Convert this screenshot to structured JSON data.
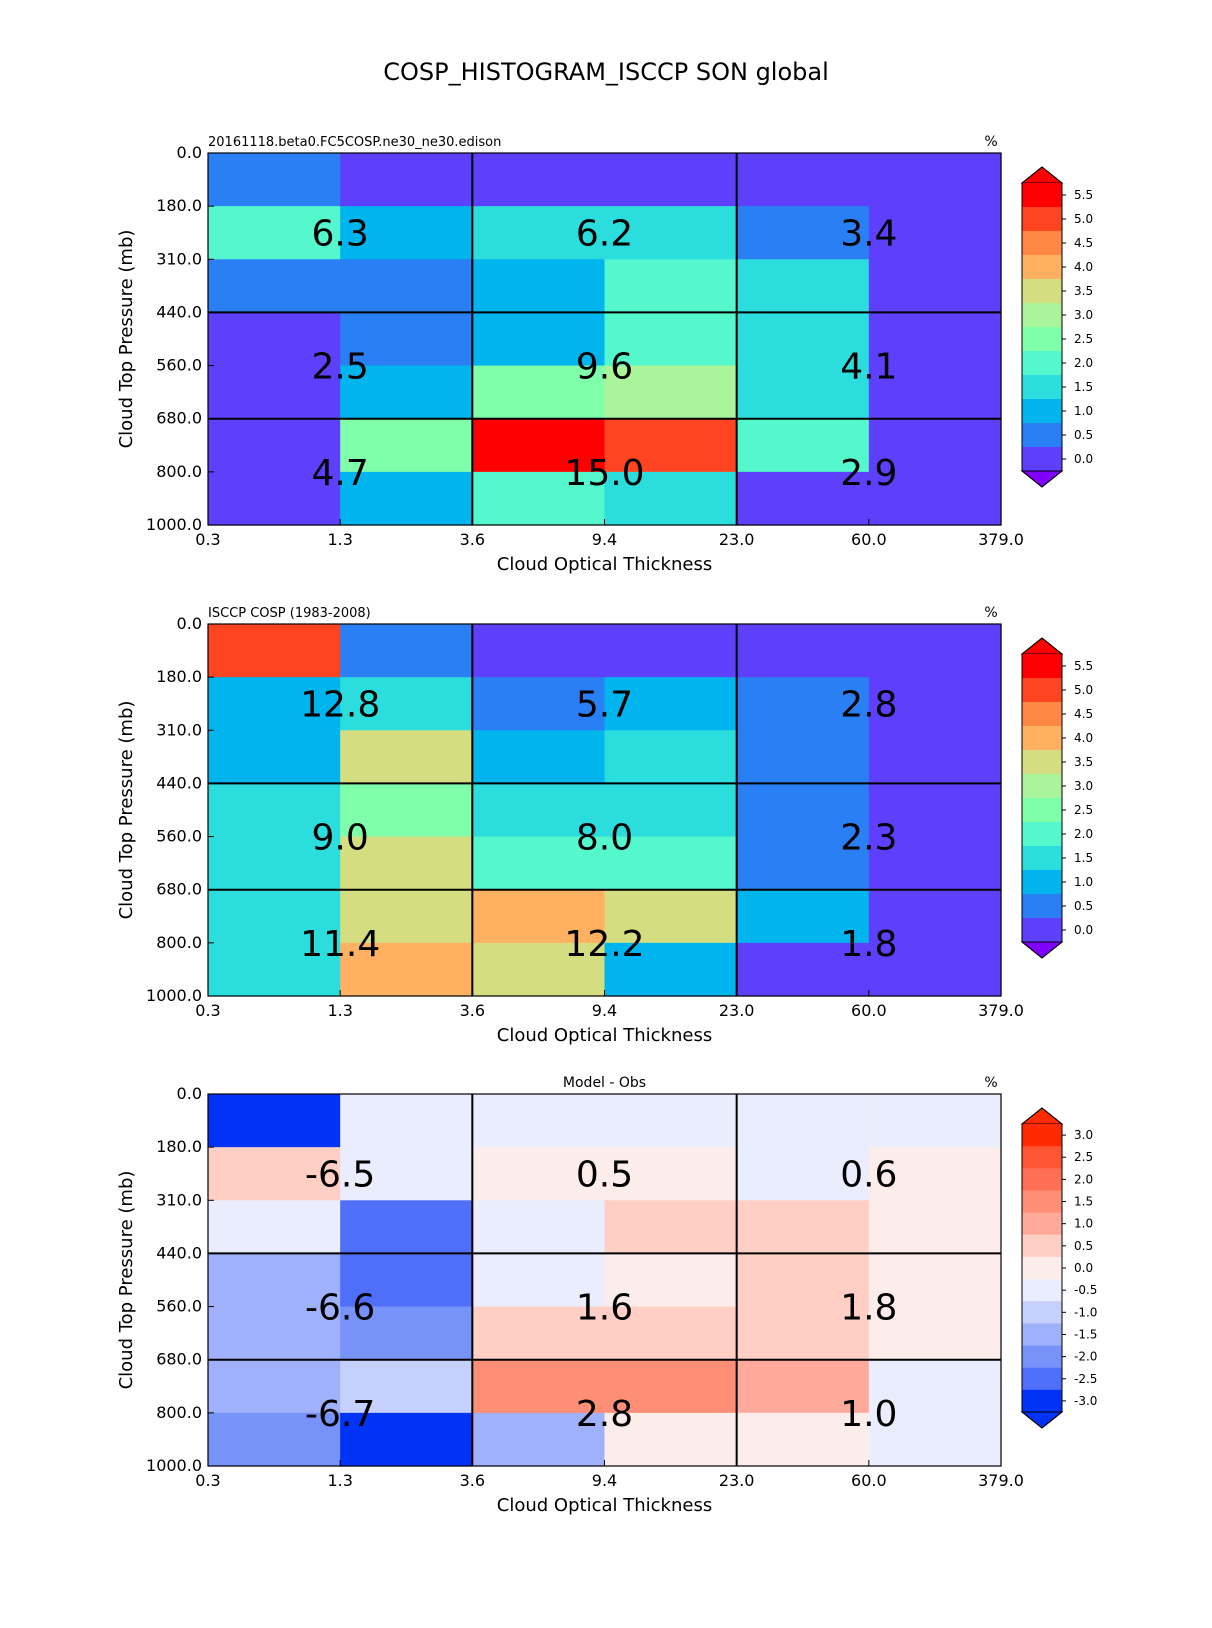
{
  "figure_title": "COSP_HISTOGRAM_ISCCP SON global",
  "chart_data": [
    {
      "type": "heatmap",
      "title": "20161118.beta0.FC5COSP.ne30_ne30.edison",
      "units": "%",
      "xlabel": "Cloud Optical Thickness",
      "ylabel": "Cloud Top Pressure (mb)",
      "x_tick_labels": [
        "0.3",
        "1.3",
        "3.6",
        "9.4",
        "23.0",
        "60.0",
        "379.0"
      ],
      "y_tick_labels": [
        "0.0",
        "180.0",
        "310.0",
        "440.0",
        "560.0",
        "680.0",
        "800.0",
        "1000.0"
      ],
      "cell_values": [
        [
          0.5,
          0.0,
          0.0,
          0.0,
          0.0,
          0.0
        ],
        [
          2.0,
          1.0,
          1.5,
          1.5,
          0.5,
          0.0
        ],
        [
          0.5,
          0.5,
          1.0,
          2.0,
          1.5,
          0.0
        ],
        [
          0.0,
          0.5,
          1.0,
          2.0,
          1.5,
          0.0
        ],
        [
          0.0,
          1.0,
          2.5,
          3.0,
          1.5,
          0.0
        ],
        [
          0.0,
          2.5,
          5.5,
          5.0,
          2.0,
          0.0
        ],
        [
          0.0,
          1.0,
          2.0,
          1.5,
          0.0,
          0.0
        ]
      ],
      "block_labels": [
        [
          "6.3",
          "6.2",
          "3.4"
        ],
        [
          "2.5",
          "9.6",
          "4.1"
        ],
        [
          "4.7",
          "15.0",
          "2.9"
        ]
      ],
      "colorbar": {
        "levels": [
          5.5,
          5.0,
          4.5,
          4.0,
          3.5,
          3.0,
          2.5,
          2.0,
          1.5,
          1.0,
          0.5,
          0.0
        ],
        "labels": [
          "5.5",
          "5.0",
          "4.5",
          "4.0",
          "3.5",
          "3.0",
          "2.5",
          "2.0",
          "1.5",
          "1.0",
          "0.5",
          "0.0"
        ],
        "colors": [
          "#ff0000",
          "#ff4422",
          "#ff8844",
          "#ffb060",
          "#d4dd80",
          "#aaf59a",
          "#80ffaa",
          "#55f7cc",
          "#2bdddd",
          "#00b4ee",
          "#2b7ff5",
          "#5e3ffc"
        ],
        "over_color": "#ff0000",
        "under_color": "#8000ff"
      }
    },
    {
      "type": "heatmap",
      "title": "ISCCP COSP (1983-2008)",
      "units": "%",
      "xlabel": "Cloud Optical Thickness",
      "ylabel": "Cloud Top Pressure (mb)",
      "x_tick_labels": [
        "0.3",
        "1.3",
        "3.6",
        "9.4",
        "23.0",
        "60.0",
        "379.0"
      ],
      "y_tick_labels": [
        "0.0",
        "180.0",
        "310.0",
        "440.0",
        "560.0",
        "680.0",
        "800.0",
        "1000.0"
      ],
      "cell_values": [
        [
          5.0,
          0.5,
          0.0,
          0.0,
          0.0,
          0.0
        ],
        [
          1.0,
          1.5,
          0.5,
          1.0,
          0.5,
          0.0
        ],
        [
          1.0,
          3.5,
          1.0,
          1.5,
          0.5,
          0.0
        ],
        [
          1.5,
          2.5,
          1.5,
          1.5,
          0.5,
          0.0
        ],
        [
          1.5,
          3.5,
          2.0,
          2.0,
          0.5,
          0.0
        ],
        [
          1.5,
          3.5,
          4.0,
          3.5,
          1.0,
          0.0
        ],
        [
          1.5,
          4.0,
          3.5,
          1.0,
          0.0,
          0.0
        ]
      ],
      "block_labels": [
        [
          "12.8",
          "5.7",
          "2.8"
        ],
        [
          "9.0",
          "8.0",
          "2.3"
        ],
        [
          "11.4",
          "12.2",
          "1.8"
        ]
      ],
      "colorbar": {
        "levels": [
          5.5,
          5.0,
          4.5,
          4.0,
          3.5,
          3.0,
          2.5,
          2.0,
          1.5,
          1.0,
          0.5,
          0.0
        ],
        "labels": [
          "5.5",
          "5.0",
          "4.5",
          "4.0",
          "3.5",
          "3.0",
          "2.5",
          "2.0",
          "1.5",
          "1.0",
          "0.5",
          "0.0"
        ],
        "colors": [
          "#ff0000",
          "#ff4422",
          "#ff8844",
          "#ffb060",
          "#d4dd80",
          "#aaf59a",
          "#80ffaa",
          "#55f7cc",
          "#2bdddd",
          "#00b4ee",
          "#2b7ff5",
          "#5e3ffc"
        ],
        "over_color": "#ff0000",
        "under_color": "#8000ff"
      }
    },
    {
      "type": "heatmap",
      "title": "Model - Obs",
      "units": "%",
      "xlabel": "Cloud Optical Thickness",
      "ylabel": "Cloud Top Pressure (mb)",
      "x_tick_labels": [
        "0.3",
        "1.3",
        "3.6",
        "9.4",
        "23.0",
        "60.0",
        "379.0"
      ],
      "y_tick_labels": [
        "0.0",
        "180.0",
        "310.0",
        "440.0",
        "560.0",
        "680.0",
        "800.0",
        "1000.0"
      ],
      "cell_values": [
        [
          -3.0,
          -0.5,
          -0.5,
          -0.5,
          -0.5,
          -0.5
        ],
        [
          0.5,
          -0.5,
          0.0,
          0.0,
          -0.5,
          0.0
        ],
        [
          -0.5,
          -2.5,
          -0.5,
          0.5,
          0.5,
          0.0
        ],
        [
          -1.5,
          -2.5,
          -0.5,
          0.0,
          0.5,
          0.0
        ],
        [
          -1.5,
          -2.0,
          0.5,
          0.5,
          0.5,
          0.0
        ],
        [
          -1.5,
          -1.0,
          1.5,
          1.5,
          1.0,
          -0.5
        ],
        [
          -2.0,
          -3.0,
          -1.5,
          0.0,
          0.0,
          -0.5
        ]
      ],
      "block_labels": [
        [
          "-6.5",
          "0.5",
          "0.6"
        ],
        [
          "-6.6",
          "1.6",
          "1.8"
        ],
        [
          "-6.7",
          "2.8",
          "1.0"
        ]
      ],
      "colorbar": {
        "levels": [
          3.0,
          2.5,
          2.0,
          1.5,
          1.0,
          0.5,
          0.0,
          -0.5,
          -1.0,
          -1.5,
          -2.0,
          -2.5,
          -3.0
        ],
        "labels": [
          "3.0",
          "2.5",
          "2.0",
          "1.5",
          "1.0",
          "0.5",
          "0.0",
          "-0.5",
          "-1.0",
          "-1.5",
          "-2.0",
          "-2.5",
          "-3.0"
        ],
        "colors": [
          "#ff2a00",
          "#ff5533",
          "#ff6f55",
          "#ff8e77",
          "#ffaa9b",
          "#ffcfc6",
          "#fdedea",
          "#eaedfd",
          "#c5d0fc",
          "#a0b1fb",
          "#7792f9",
          "#4f6ff8",
          "#0033f5"
        ],
        "over_color": "#ff2a00",
        "under_color": "#0033f5"
      }
    }
  ]
}
